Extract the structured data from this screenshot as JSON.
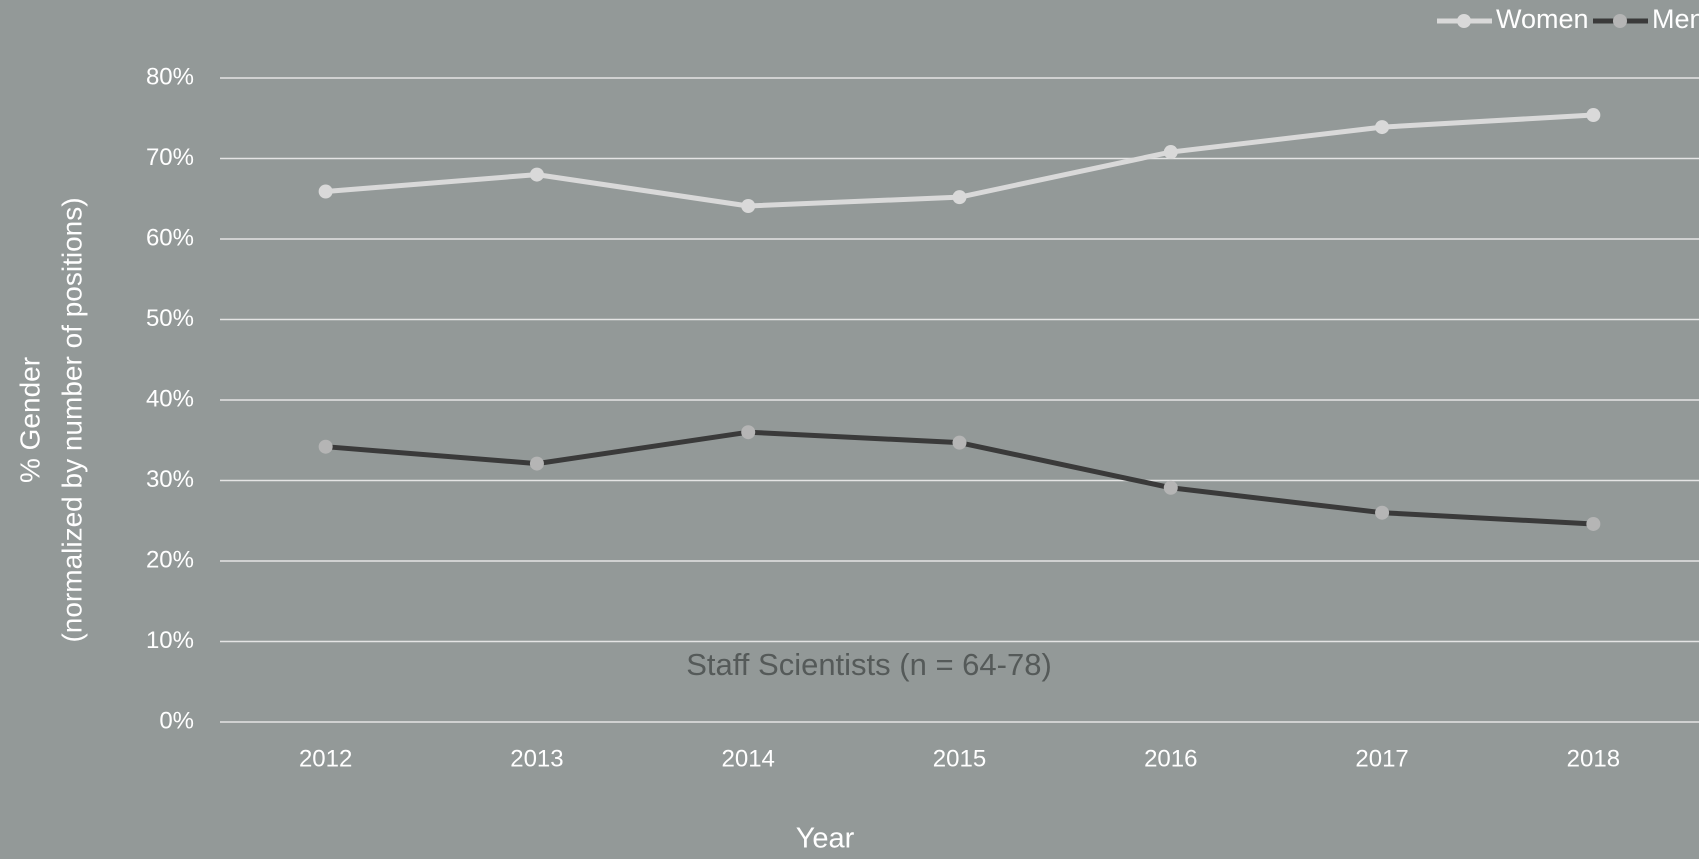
{
  "chart_data": {
    "type": "line",
    "annotation": "Staff Scientists (n = 64-78)",
    "xlabel": "Year",
    "ylabel": [
      "% Gender",
      "(normalized by number of positions)"
    ],
    "categories": [
      "2012",
      "2013",
      "2014",
      "2015",
      "2016",
      "2017",
      "2018"
    ],
    "series": [
      {
        "name": "Women",
        "color": "#d9d9d9",
        "marker_color": "#d9d9d9",
        "values": [
          65.9,
          68.0,
          64.1,
          65.2,
          70.8,
          73.9,
          75.4
        ]
      },
      {
        "name": "Men",
        "color": "#3a3a3a",
        "marker_color": "#b5b5b5",
        "values": [
          34.2,
          32.1,
          36.0,
          34.7,
          29.1,
          26.0,
          24.6
        ]
      }
    ],
    "ylim": [
      0,
      80
    ],
    "yticks": [
      {
        "value": 0,
        "label": "0%"
      },
      {
        "value": 10,
        "label": "10%"
      },
      {
        "value": 20,
        "label": "20%"
      },
      {
        "value": 30,
        "label": "30%"
      },
      {
        "value": 40,
        "label": "40%"
      },
      {
        "value": 50,
        "label": "50%"
      },
      {
        "value": 60,
        "label": "60%"
      },
      {
        "value": 70,
        "label": "70%"
      },
      {
        "value": 80,
        "label": "80%"
      }
    ],
    "grid": true,
    "legend": "top-right"
  }
}
